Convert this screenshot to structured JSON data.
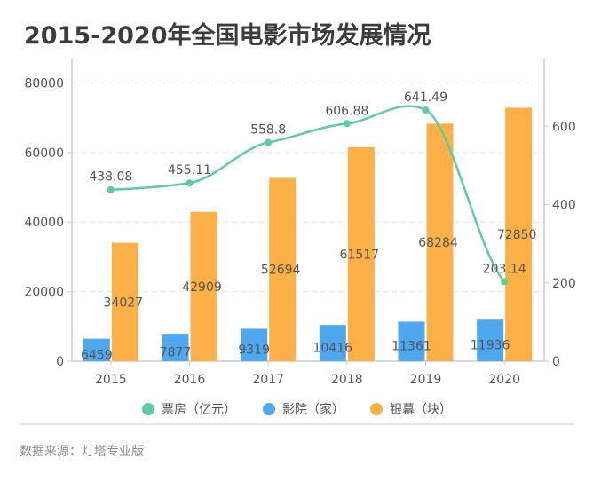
{
  "title": "2015-2020年全国电影市场发展情况",
  "source": "数据来源：灯塔专业版",
  "chart_data": {
    "type": "bar",
    "title": "2015-2020年全国电影市场发展情况",
    "categories": [
      "2015",
      "2016",
      "2017",
      "2018",
      "2019",
      "2020"
    ],
    "series": [
      {
        "name": "票房（亿元）",
        "type": "line",
        "axis": "right",
        "color": "#5ccda2",
        "values": [
          438.08,
          455.11,
          558.8,
          606.88,
          641.49,
          203.14
        ]
      },
      {
        "name": "影院（家）",
        "type": "bar",
        "axis": "left",
        "color": "#4ea8f0",
        "values": [
          6459,
          7877,
          9319,
          10416,
          11361,
          11936
        ]
      },
      {
        "name": "银幕（块）",
        "type": "bar",
        "axis": "left",
        "color": "#fdb045",
        "values": [
          34027,
          42909,
          52694,
          61517,
          68284,
          72850
        ]
      }
    ],
    "left_axis": {
      "ticks": [
        0,
        20000,
        40000,
        60000,
        80000
      ],
      "labels": [
        "0",
        "20000",
        "40000",
        "60000",
        "80000"
      ],
      "range": [
        0,
        87000
      ]
    },
    "right_axis": {
      "ticks": [
        0,
        200,
        400,
        600
      ],
      "labels": [
        "0",
        "200",
        "400",
        "600"
      ],
      "range": [
        0,
        773
      ]
    },
    "grid": true,
    "legend": "bottom-center",
    "xlabel": "",
    "ylabel": ""
  }
}
